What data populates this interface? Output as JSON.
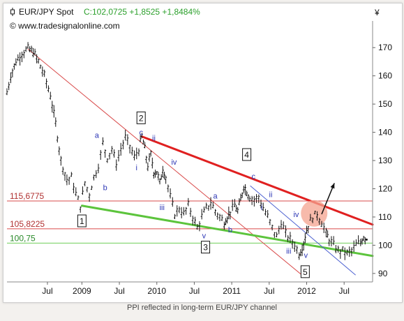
{
  "header": {
    "title": "EUR/JPY Spot",
    "quote": "C:102,0725 +1,8525 +1,8484%",
    "source": "© www.tradesignalonline.com",
    "currency_symbol": "¥"
  },
  "caption": "PPI reflected in long-term EUR/JPY channel",
  "colors": {
    "price": "#111111",
    "up_quote": "#2ca02c",
    "channel_red": "#e02020",
    "channel_green": "#5cc43c",
    "thin_red": "#d94b4b",
    "thin_green": "#6fcf5a",
    "wave_labels": "#2b35b5",
    "highlight_circle": "#f4a38f"
  },
  "chart_data": {
    "type": "line",
    "title": "EUR/JPY Spot",
    "ylim": [
      87,
      175
    ],
    "yticks": [
      90,
      100,
      110,
      120,
      130,
      140,
      150,
      160,
      170
    ],
    "x_labels": [
      {
        "t": 2008.54,
        "label": "Jul"
      },
      {
        "t": 2009.0,
        "label": "2009"
      },
      {
        "t": 2009.5,
        "label": "Jul"
      },
      {
        "t": 2010.0,
        "label": "2010"
      },
      {
        "t": 2010.5,
        "label": "Jul"
      },
      {
        "t": 2011.0,
        "label": "2011"
      },
      {
        "t": 2011.5,
        "label": "Jul"
      },
      {
        "t": 2012.0,
        "label": "2012"
      },
      {
        "t": 2012.5,
        "label": "Jul"
      }
    ],
    "series": [
      {
        "values": [
          [
            2008.0,
            154
          ],
          [
            2008.05,
            160
          ],
          [
            2008.12,
            165
          ],
          [
            2008.2,
            168
          ],
          [
            2008.28,
            169.5
          ],
          [
            2008.35,
            168.5
          ],
          [
            2008.42,
            165
          ],
          [
            2008.5,
            160
          ],
          [
            2008.58,
            153
          ],
          [
            2008.65,
            143
          ],
          [
            2008.72,
            130
          ],
          [
            2008.8,
            123
          ],
          [
            2008.86,
            124
          ],
          [
            2008.92,
            118
          ],
          [
            2008.98,
            114
          ],
          [
            2009.04,
            122
          ],
          [
            2009.1,
            118
          ],
          [
            2009.16,
            124
          ],
          [
            2009.22,
            128
          ],
          [
            2009.28,
            136
          ],
          [
            2009.34,
            131
          ],
          [
            2009.4,
            134
          ],
          [
            2009.46,
            129
          ],
          [
            2009.52,
            134
          ],
          [
            2009.58,
            138
          ],
          [
            2009.64,
            135
          ],
          [
            2009.7,
            131
          ],
          [
            2009.76,
            134
          ],
          [
            2009.8,
            138.5
          ],
          [
            2009.84,
            134
          ],
          [
            2009.88,
            128
          ],
          [
            2009.92,
            132
          ],
          [
            2009.96,
            126
          ],
          [
            2010.0,
            126
          ],
          [
            2010.04,
            122
          ],
          [
            2010.08,
            127
          ],
          [
            2010.12,
            124
          ],
          [
            2010.18,
            117
          ],
          [
            2010.24,
            111
          ],
          [
            2010.3,
            113
          ],
          [
            2010.36,
            111
          ],
          [
            2010.42,
            114
          ],
          [
            2010.48,
            110
          ],
          [
            2010.54,
            106
          ],
          [
            2010.6,
            110
          ],
          [
            2010.66,
            113
          ],
          [
            2010.72,
            115
          ],
          [
            2010.78,
            112
          ],
          [
            2010.84,
            110
          ],
          [
            2010.9,
            108
          ],
          [
            2010.94,
            110
          ],
          [
            2010.98,
            112
          ],
          [
            2011.04,
            114
          ],
          [
            2011.08,
            112
          ],
          [
            2011.12,
            116
          ],
          [
            2011.16,
            121
          ],
          [
            2011.2,
            119
          ],
          [
            2011.24,
            117
          ],
          [
            2011.3,
            116
          ],
          [
            2011.36,
            117
          ],
          [
            2011.42,
            113
          ],
          [
            2011.48,
            110
          ],
          [
            2011.54,
            106
          ],
          [
            2011.6,
            103
          ],
          [
            2011.66,
            108
          ],
          [
            2011.72,
            104
          ],
          [
            2011.78,
            102
          ],
          [
            2011.84,
            100
          ],
          [
            2011.9,
            97
          ],
          [
            2011.94,
            99
          ],
          [
            2011.98,
            103
          ],
          [
            2012.02,
            107
          ],
          [
            2012.08,
            110
          ],
          [
            2012.14,
            111
          ],
          [
            2012.2,
            108
          ],
          [
            2012.26,
            104
          ],
          [
            2012.3,
            102
          ],
          [
            2012.36,
            100
          ],
          [
            2012.42,
            98
          ],
          [
            2012.48,
            98
          ],
          [
            2012.54,
            97
          ],
          [
            2012.6,
            98
          ],
          [
            2012.66,
            100
          ],
          [
            2012.72,
            101
          ],
          [
            2012.76,
            103
          ],
          [
            2012.8,
            102
          ]
        ]
      }
    ],
    "price_labels": [
      {
        "text": "115,6775",
        "value": 115.6775
      },
      {
        "text": "105,8225",
        "value": 105.8225
      },
      {
        "text": "100,75",
        "value": 100.75
      }
    ],
    "wave_labels": [
      {
        "text": "1",
        "boxed": true,
        "t": 2009.0,
        "v": 108.5
      },
      {
        "text": "2",
        "boxed": true,
        "t": 2009.79,
        "v": 145
      },
      {
        "text": "3",
        "boxed": true,
        "t": 2010.65,
        "v": 99.2
      },
      {
        "text": "4",
        "boxed": true,
        "t": 2011.2,
        "v": 132
      },
      {
        "text": "5",
        "boxed": true,
        "t": 2011.98,
        "v": 90.5
      },
      {
        "text": "a",
        "boxed": false,
        "t": 2009.2,
        "v": 139
      },
      {
        "text": "b",
        "boxed": false,
        "t": 2009.31,
        "v": 120.5
      },
      {
        "text": "c",
        "boxed": false,
        "t": 2009.79,
        "v": 140
      },
      {
        "text": "i",
        "boxed": false,
        "t": 2009.73,
        "v": 127.5
      },
      {
        "text": "ii",
        "boxed": false,
        "t": 2009.96,
        "v": 138
      },
      {
        "text": "iii",
        "boxed": false,
        "t": 2010.07,
        "v": 113.5
      },
      {
        "text": "iv",
        "boxed": false,
        "t": 2010.23,
        "v": 129.5
      },
      {
        "text": "v",
        "boxed": false,
        "t": 2010.63,
        "v": 103.5
      },
      {
        "text": "a",
        "boxed": false,
        "t": 2010.78,
        "v": 117.5
      },
      {
        "text": "b",
        "boxed": false,
        "t": 2010.98,
        "v": 105.5
      },
      {
        "text": "c",
        "boxed": false,
        "t": 2011.29,
        "v": 124.5
      },
      {
        "text": "ii",
        "boxed": false,
        "t": 2011.52,
        "v": 118
      },
      {
        "text": "i",
        "boxed": false,
        "t": 2011.4,
        "v": 113.5
      },
      {
        "text": "iii",
        "boxed": false,
        "t": 2011.76,
        "v": 98
      },
      {
        "text": "iv",
        "boxed": false,
        "t": 2011.86,
        "v": 111
      },
      {
        "text": "v",
        "boxed": false,
        "t": 2011.99,
        "v": 96.5
      }
    ]
  }
}
